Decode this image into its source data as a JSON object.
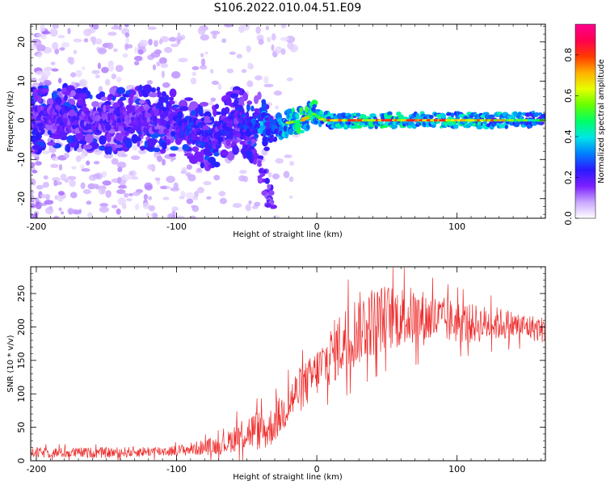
{
  "title": "S106.2022.010.04.51.E09",
  "chart_data": [
    {
      "type": "heatmap",
      "xlabel": "Height of straight line (km)",
      "ylabel": "Frequency (Hz)",
      "xlim": [
        -204,
        163
      ],
      "ylim": [
        -25,
        24.5
      ],
      "xticks": [
        -200,
        -100,
        0,
        100
      ],
      "yticks": [
        -20,
        -10,
        0,
        10,
        20
      ],
      "colorbar": {
        "label": "Normalized spectral amplitude",
        "range": [
          0,
          0.95
        ],
        "ticks": [
          "0.0",
          "0.2",
          "0.4",
          "0.6",
          "0.8"
        ],
        "tick_values": [
          0.0,
          0.2,
          0.4,
          0.6,
          0.8
        ],
        "colormap": [
          "#ffffff",
          "#c9a6ff",
          "#7b1fff",
          "#2a1aff",
          "#0080ff",
          "#00e6e6",
          "#00ff66",
          "#66ff00",
          "#e6ff00",
          "#ffb000",
          "#ff3a00",
          "#ff0050",
          "#ff0090"
        ]
      },
      "ridge": [
        [
          -200,
          0.0,
          0.35
        ],
        [
          -185,
          1.0,
          0.35
        ],
        [
          -170,
          0.0,
          0.35
        ],
        [
          -155,
          0.5,
          0.35
        ],
        [
          -140,
          0.0,
          0.35
        ],
        [
          -125,
          0.5,
          0.35
        ],
        [
          -110,
          0.0,
          0.35
        ],
        [
          -95,
          -2.0,
          0.4
        ],
        [
          -85,
          -3.0,
          0.45
        ],
        [
          -75,
          -4.5,
          0.4
        ],
        [
          -65,
          -2.0,
          0.4
        ],
        [
          -55,
          0.5,
          0.4
        ],
        [
          -48,
          -3.0,
          0.45
        ],
        [
          -40,
          0.0,
          0.6
        ],
        [
          -32,
          -3.0,
          0.5
        ],
        [
          -25,
          -1.0,
          0.6
        ],
        [
          -18,
          -0.5,
          0.7
        ],
        [
          -10,
          0.0,
          0.8
        ],
        [
          -3,
          1.8,
          0.75
        ],
        [
          5,
          0.0,
          0.85
        ],
        [
          20,
          0.0,
          0.9
        ],
        [
          40,
          0.0,
          0.95
        ],
        [
          60,
          0.0,
          0.92
        ],
        [
          80,
          0.0,
          0.9
        ],
        [
          100,
          0.0,
          0.92
        ],
        [
          120,
          0.0,
          0.85
        ],
        [
          140,
          0.0,
          0.8
        ],
        [
          163,
          0.0,
          0.6
        ]
      ],
      "branch": [
        [
          -55,
          -3.0
        ],
        [
          -48,
          -6.0
        ],
        [
          -42,
          -10.0
        ],
        [
          -38,
          -14.0
        ],
        [
          -35,
          -18.0
        ],
        [
          -33,
          -21.0
        ]
      ]
    },
    {
      "type": "line",
      "xlabel": "Height of straight line (km)",
      "ylabel": "SNR (10 * v/v)",
      "xlim": [
        -204,
        163
      ],
      "ylim": [
        0,
        290
      ],
      "xticks": [
        -200,
        -100,
        0,
        100
      ],
      "yticks": [
        0,
        50,
        100,
        150,
        200,
        250
      ],
      "color": "#ee2b2b",
      "envelope": {
        "x": [
          -204,
          -150,
          -100,
          -80,
          -65,
          -55,
          -45,
          -35,
          -25,
          -15,
          -5,
          5,
          15,
          25,
          35,
          50,
          70,
          90,
          110,
          130,
          150,
          163
        ],
        "mean": [
          12,
          12,
          15,
          20,
          25,
          40,
          45,
          45,
          70,
          100,
          120,
          145,
          170,
          190,
          205,
          215,
          215,
          210,
          205,
          205,
          200,
          195
        ],
        "spread": [
          8,
          8,
          8,
          12,
          15,
          25,
          30,
          30,
          30,
          35,
          35,
          40,
          50,
          55,
          55,
          50,
          45,
          35,
          30,
          25,
          20,
          20
        ]
      }
    }
  ]
}
